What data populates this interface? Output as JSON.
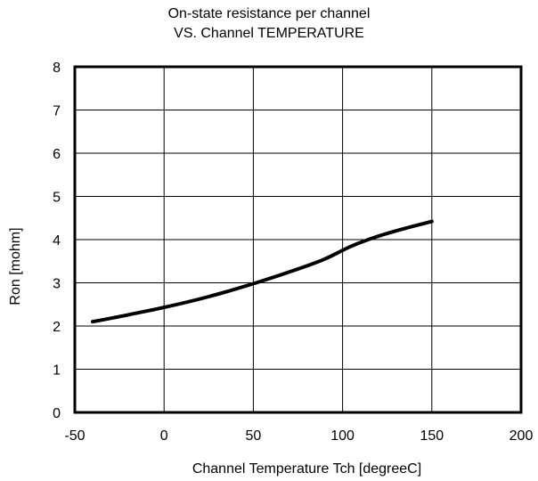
{
  "chart_data": {
    "type": "line",
    "title": [
      "On-state  resistance per channel",
      "VS. Channel TEMPERATURE"
    ],
    "xlabel": "Channel Temperature   Tch  [degreeC]",
    "ylabel": "Ron [mohm]",
    "xlim": [
      -50,
      200
    ],
    "ylim": [
      0,
      8
    ],
    "xticks": [
      -50,
      0,
      50,
      100,
      150,
      200
    ],
    "yticks": [
      0,
      1,
      2,
      3,
      4,
      5,
      6,
      7,
      8
    ],
    "grid": true,
    "series": [
      {
        "color": "#000000",
        "x": [
          -40,
          -20,
          0,
          25,
          50,
          75,
          90,
          105,
          120,
          135,
          150
        ],
        "y": [
          2.1,
          2.26,
          2.43,
          2.68,
          2.98,
          3.32,
          3.55,
          3.85,
          4.08,
          4.26,
          4.42
        ]
      }
    ]
  }
}
